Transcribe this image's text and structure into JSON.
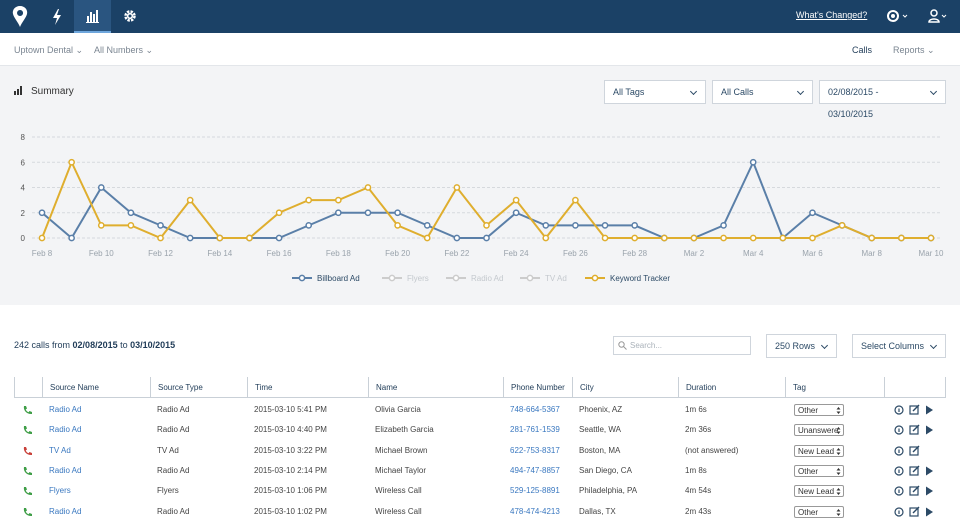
{
  "nav": {
    "whats_changed": "What's Changed?"
  },
  "subnav": {
    "account": "Uptown Dental",
    "numbers": "All Numbers",
    "tabs": [
      "Calls",
      "Reports"
    ]
  },
  "filters": {
    "tags": "All Tags",
    "calls": "All Calls",
    "dates": "02/08/2015 - 03/10/2015"
  },
  "chart_data": {
    "type": "line",
    "title": "Summary",
    "categories": [
      "Feb 8",
      null,
      "Feb 10",
      null,
      "Feb 12",
      null,
      "Feb 14",
      null,
      "Feb 16",
      null,
      "Feb 18",
      null,
      "Feb 20",
      null,
      "Feb 22",
      null,
      "Feb 24",
      null,
      "Feb 26",
      null,
      "Feb 28",
      null,
      "Mar 2",
      null,
      "Mar 4",
      null,
      "Mar 6",
      null,
      "Mar 8",
      null,
      "Mar 10"
    ],
    "series": [
      {
        "name": "Billboard Ad",
        "color": "#5a7fa8",
        "values": [
          2,
          0,
          4,
          2,
          1,
          0,
          0,
          0,
          0,
          1,
          2,
          2,
          2,
          1,
          0,
          0,
          2,
          1,
          1,
          1,
          1,
          0,
          0,
          1,
          6,
          0,
          2,
          1,
          0,
          0,
          0
        ]
      },
      {
        "name": "Flyers",
        "color": "#cccccc",
        "visible": false
      },
      {
        "name": "Radio Ad",
        "color": "#cccccc",
        "visible": false
      },
      {
        "name": "TV Ad",
        "color": "#cccccc",
        "visible": false
      },
      {
        "name": "Keyword Tracker",
        "color": "#dfae2e",
        "values": [
          0,
          6,
          1,
          1,
          0,
          3,
          0,
          0,
          2,
          3,
          3,
          4,
          1,
          0,
          4,
          1,
          3,
          0,
          3,
          0,
          0,
          0,
          0,
          0,
          0,
          0,
          0,
          1,
          0,
          0,
          0
        ]
      }
    ],
    "ylim": [
      0,
      8
    ],
    "yticks": [
      0,
      2,
      4,
      6,
      8
    ],
    "grid": true
  },
  "summary": {
    "lead": "242 calls from",
    "from": "02/08/2015",
    "joiner": "to",
    "to": "03/10/2015"
  },
  "controls": {
    "search_placeholder": "Search...",
    "rows": "250 Rows",
    "columns": "Select Columns"
  },
  "table": {
    "columns": [
      "Source Name",
      "Source Type",
      "Time",
      "Name",
      "Phone Number",
      "City",
      "Duration",
      "Tag"
    ],
    "rows": [
      {
        "status": "answered",
        "playable": true,
        "cells": [
          "Radio Ad",
          "Radio Ad",
          "2015-03-10 5:41 PM",
          "Olivia Garcia",
          "748-664-5367",
          "Phoenix, AZ",
          "1m 6s",
          "Other"
        ]
      },
      {
        "status": "answered",
        "playable": true,
        "cells": [
          "Radio Ad",
          "Radio Ad",
          "2015-03-10 4:40 PM",
          "Elizabeth Garcia",
          "281-761-1539",
          "Seattle, WA",
          "2m 36s",
          "Unanswered"
        ]
      },
      {
        "status": "missed",
        "playable": false,
        "cells": [
          "TV Ad",
          "TV Ad",
          "2015-03-10 3:22 PM",
          "Michael Brown",
          "622-753-8317",
          "Boston, MA",
          "(not answered)",
          "New Lead"
        ]
      },
      {
        "status": "answered",
        "playable": true,
        "cells": [
          "Radio Ad",
          "Radio Ad",
          "2015-03-10 2:14 PM",
          "Michael Taylor",
          "494-747-8857",
          "San Diego, CA",
          "1m 8s",
          "Other"
        ]
      },
      {
        "status": "answered",
        "playable": true,
        "cells": [
          "Flyers",
          "Flyers",
          "2015-03-10 1:06 PM",
          "Wireless Call",
          "529-125-8891",
          "Philadelphia, PA",
          "4m 54s",
          "New Lead"
        ]
      },
      {
        "status": "answered",
        "playable": true,
        "cells": [
          "Radio Ad",
          "Radio Ad",
          "2015-03-10 1:02 PM",
          "Wireless Call",
          "478-474-4213",
          "Dallas, TX",
          "2m 43s",
          "Other"
        ]
      }
    ]
  }
}
